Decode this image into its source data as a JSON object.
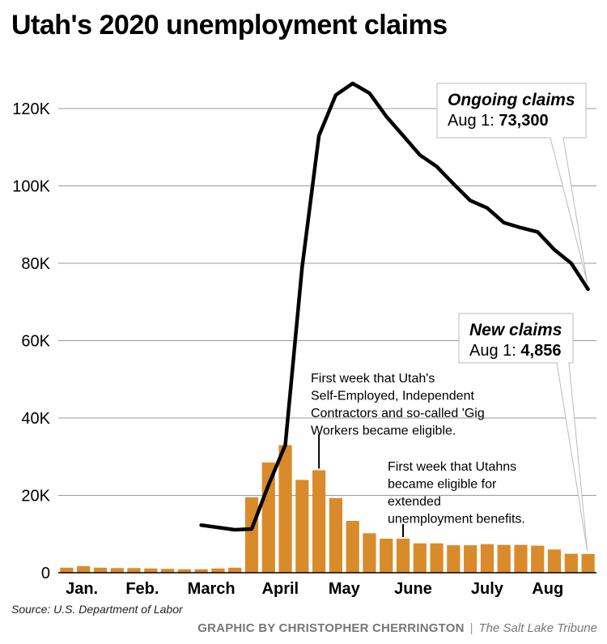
{
  "title": "Utah's 2020 unemployment claims",
  "source": "Source: U.S. Department of Labor",
  "credit": {
    "byline": "GRAPHIC BY CHRISTOPHER CHERRINGTON",
    "separator": "|",
    "publication": "The Salt Lake Tribune"
  },
  "colors": {
    "bar": "#d98b2b",
    "line": "#000000",
    "grid": "#999999"
  },
  "chart_data": {
    "type": "bar",
    "y_ticks": [
      "0",
      "20K",
      "40K",
      "60K",
      "80K",
      "100K",
      "120K"
    ],
    "y_tick_values": [
      0,
      20000,
      40000,
      60000,
      80000,
      100000,
      120000
    ],
    "ylim": [
      0,
      128000
    ],
    "month_labels": [
      "Jan.",
      "Feb.",
      "March",
      "April",
      "May",
      "June",
      "July",
      "Aug"
    ],
    "month_label_week_positions": [
      0.9,
      4.5,
      8.6,
      12.7,
      16.5,
      20.6,
      25.0,
      28.6
    ],
    "grid": true,
    "series": [
      {
        "kind": "bar",
        "values": [
          1300,
          1700,
          1300,
          1200,
          1200,
          1100,
          1000,
          900,
          900,
          1100,
          1300,
          19500,
          28500,
          33000,
          24000,
          26500,
          19300,
          13400,
          10200,
          8800,
          8800,
          7600,
          7600,
          7100,
          7100,
          7400,
          7200,
          7200,
          7000,
          6000,
          4900,
          4856
        ]
      },
      {
        "kind": "line",
        "start_week": 8,
        "values": [
          12300,
          11700,
          11100,
          11300,
          22700,
          33000,
          79000,
          113000,
          123500,
          126500,
          124000,
          118000,
          113000,
          108000,
          105000,
          100500,
          96200,
          94300,
          90500,
          89200,
          88100,
          83500,
          80000,
          73300
        ]
      }
    ],
    "annotations": [
      {
        "kind": "callout",
        "title": "Ongoing claims",
        "date": "Aug 1:",
        "value": "73,300"
      },
      {
        "kind": "callout",
        "title": "New claims",
        "date": "Aug 1:",
        "value": "4,856"
      },
      {
        "kind": "note",
        "lines": [
          "First week that Utah's",
          "Self-Employed, Independent",
          "Contractors and so-called 'Gig",
          "Workers became eligible."
        ]
      },
      {
        "kind": "note",
        "lines": [
          "First week that Utahns",
          "became eligible for",
          "extended",
          "unemployment benefits."
        ]
      }
    ]
  }
}
